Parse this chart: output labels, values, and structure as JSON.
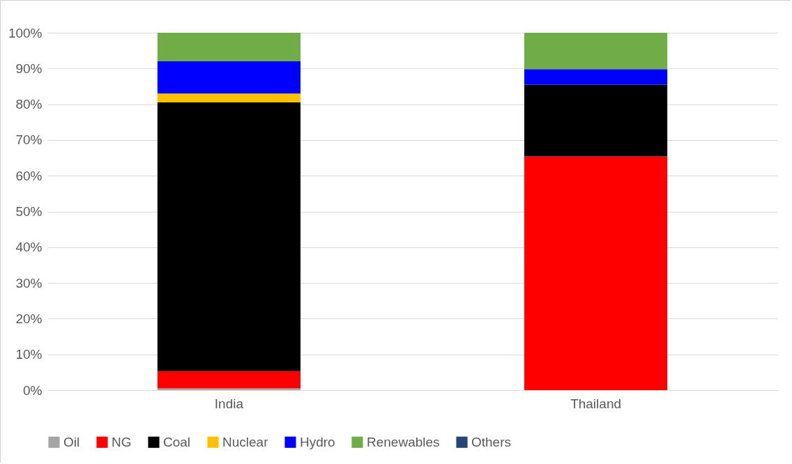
{
  "chart_data": {
    "type": "bar",
    "stacked": true,
    "categories": [
      "India",
      "Thailand"
    ],
    "series": [
      {
        "name": "Oil",
        "color": "#a5a5a5",
        "values": [
          0.5,
          0
        ]
      },
      {
        "name": "NG",
        "color": "#ff0000",
        "values": [
          4.8,
          65.4
        ]
      },
      {
        "name": "Coal",
        "color": "#000000",
        "values": [
          75.2,
          20.1
        ]
      },
      {
        "name": "Nuclear",
        "color": "#ffc000",
        "values": [
          2.5,
          0
        ]
      },
      {
        "name": "Hydro",
        "color": "#0000ff",
        "values": [
          9.0,
          4.3
        ]
      },
      {
        "name": "Renewables",
        "color": "#70ad47",
        "values": [
          8.0,
          10.2
        ]
      },
      {
        "name": "Others",
        "color": "#264478",
        "values": [
          0,
          0
        ]
      }
    ],
    "ylim": [
      0,
      100
    ],
    "yticks": [
      {
        "value": 0,
        "label": "0%"
      },
      {
        "value": 10,
        "label": "10%"
      },
      {
        "value": 20,
        "label": "20%"
      },
      {
        "value": 30,
        "label": "30%"
      },
      {
        "value": 40,
        "label": "40%"
      },
      {
        "value": 50,
        "label": "50%"
      },
      {
        "value": 60,
        "label": "60%"
      },
      {
        "value": 70,
        "label": "70%"
      },
      {
        "value": 80,
        "label": "80%"
      },
      {
        "value": 90,
        "label": "90%"
      },
      {
        "value": 100,
        "label": "100%"
      }
    ],
    "grid": "y",
    "legend": "bottom"
  }
}
